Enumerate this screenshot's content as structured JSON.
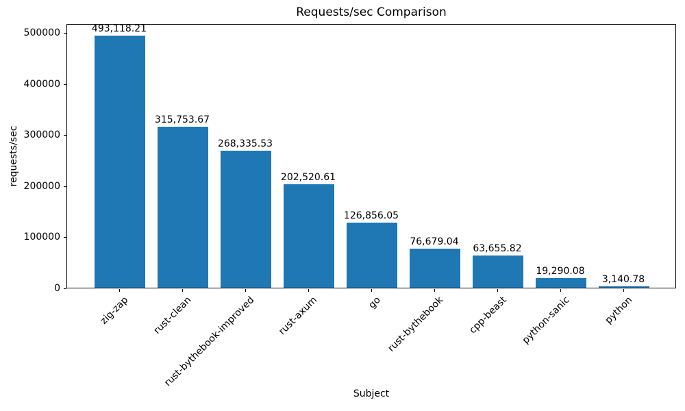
{
  "figure": {
    "title": "Requests/sec Comparison",
    "xlabel": "Subject",
    "ylabel": "requests/sec"
  },
  "chart_data": {
    "type": "bar",
    "title": "Requests/sec Comparison",
    "xlabel": "Subject",
    "ylabel": "requests/sec",
    "categories": [
      "zig-zap",
      "rust-clean",
      "rust-bythebook-improved",
      "rust-axum",
      "go",
      "rust-bythebook",
      "cpp-beast",
      "python-sanic",
      "python"
    ],
    "values": [
      493118.21,
      315753.67,
      268335.53,
      202520.61,
      126856.05,
      76679.04,
      63655.82,
      19290.08,
      3140.78
    ],
    "value_labels": [
      "493,118.21",
      "315,753.67",
      "268,335.53",
      "202,520.61",
      "126,856.05",
      "76,679.04",
      "63,655.82",
      "19,290.08",
      "3,140.78"
    ],
    "yticks": [
      0,
      100000,
      200000,
      300000,
      400000,
      500000
    ],
    "ytick_labels": [
      "0",
      "100000",
      "200000",
      "300000",
      "400000",
      "500000"
    ],
    "ylim": [
      0,
      517774
    ],
    "bar_color": "#1f77b4",
    "text_color": "#000000",
    "grid": false,
    "legend": null,
    "x_tick_rotation": 45
  }
}
